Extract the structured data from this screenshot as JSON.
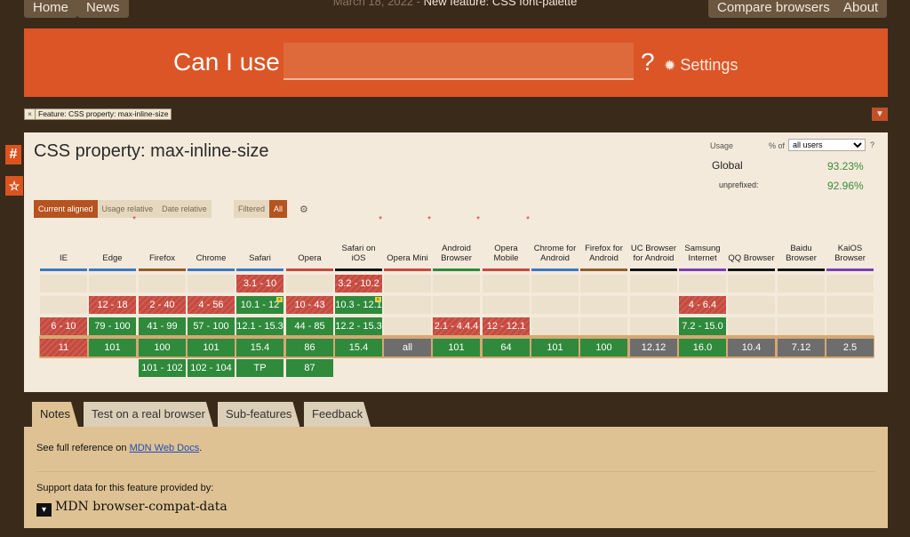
{
  "nav": {
    "home": "Home",
    "news": "News",
    "compare": "Compare browsers",
    "about": "About"
  },
  "news_bar": {
    "date": "March 18, 2022 - ",
    "headline": "New feature: CSS font-palette"
  },
  "header": {
    "can_i_use": "Can I use",
    "search_value": "",
    "question": "?",
    "settings": "Settings"
  },
  "feature_tag": {
    "close": "×",
    "label": "Feature: CSS property: max-inline-size"
  },
  "side_icons": {
    "hash": "#",
    "star": "☆"
  },
  "title": "CSS property: max-inline-size",
  "usage": {
    "label": "Usage",
    "pct_of": "% of",
    "selected": "all users",
    "help": "?",
    "global": "Global",
    "global_value": "93.23%",
    "unprefixed": "unprefixed:",
    "unprefixed_value": "92.96%"
  },
  "view_tabs": [
    "Current aligned",
    "Usage relative",
    "Date relative"
  ],
  "filter_tabs": [
    "Filtered",
    "All"
  ],
  "browsers": [
    {
      "name": "IE",
      "asterisk": false,
      "color": "#3c78c3"
    },
    {
      "name": "Edge",
      "asterisk": true,
      "color": "#3c78c3"
    },
    {
      "name": "Firefox",
      "asterisk": false,
      "color": "#8f5e2e"
    },
    {
      "name": "Chrome",
      "asterisk": false,
      "color": "#3c78c3"
    },
    {
      "name": "Safari",
      "asterisk": false,
      "color": "#3c78c3"
    },
    {
      "name": "Opera",
      "asterisk": false,
      "color": "#c44a40"
    },
    {
      "name": "Safari on iOS",
      "asterisk": true,
      "color": "#111111"
    },
    {
      "name": "Opera Mini",
      "asterisk": true,
      "color": "#c44a40"
    },
    {
      "name": "Android Browser",
      "asterisk": true,
      "color": "#2f8a3c"
    },
    {
      "name": "Opera Mobile",
      "asterisk": true,
      "color": "#c44a40"
    },
    {
      "name": "Chrome for Android",
      "asterisk": false,
      "color": "#3c78c3"
    },
    {
      "name": "Firefox for Android",
      "asterisk": false,
      "color": "#8f5e2e"
    },
    {
      "name": "UC Browser for Android",
      "asterisk": false,
      "color": "#111111"
    },
    {
      "name": "Samsung Internet",
      "asterisk": false,
      "color": "#7a3fb5"
    },
    {
      "name": "QQ Browser",
      "asterisk": false,
      "color": "#111111"
    },
    {
      "name": "Baidu Browser",
      "asterisk": false,
      "color": "#111111"
    },
    {
      "name": "KaiOS Browser",
      "asterisk": false,
      "color": "#7a3fb5"
    }
  ],
  "rows": [
    [
      null,
      null,
      null,
      null,
      {
        "v": "3.1 - 10",
        "s": "red"
      },
      null,
      {
        "v": "3.2 - 10.2",
        "s": "red"
      },
      null,
      null,
      null,
      null,
      null,
      null,
      null,
      null,
      null,
      null
    ],
    [
      null,
      {
        "v": "12 - 18",
        "s": "red"
      },
      {
        "v": "2 - 40",
        "s": "red"
      },
      {
        "v": "4 - 56",
        "s": "red"
      },
      {
        "v": "10.1 - 12",
        "s": "grn",
        "flag": true
      },
      {
        "v": "10 - 43",
        "s": "red"
      },
      {
        "v": "10.3 - 12.1",
        "s": "grn",
        "flag": true
      },
      null,
      null,
      null,
      null,
      null,
      null,
      {
        "v": "4 - 6.4",
        "s": "red"
      },
      null,
      null,
      null
    ],
    [
      {
        "v": "6 - 10",
        "s": "red"
      },
      {
        "v": "79 - 100",
        "s": "grn"
      },
      {
        "v": "41 - 99",
        "s": "grn"
      },
      {
        "v": "57 - 100",
        "s": "grn"
      },
      {
        "v": "12.1 - 15.3",
        "s": "grn"
      },
      {
        "v": "44 - 85",
        "s": "grn"
      },
      {
        "v": "12.2 - 15.3",
        "s": "grn"
      },
      null,
      {
        "v": "2.1 - 4.4.4",
        "s": "red"
      },
      {
        "v": "12 - 12.1",
        "s": "red"
      },
      null,
      null,
      null,
      {
        "v": "7.2 - 15.0",
        "s": "grn"
      },
      null,
      null,
      null
    ],
    [
      {
        "v": "11",
        "s": "red"
      },
      {
        "v": "101",
        "s": "grn"
      },
      {
        "v": "100",
        "s": "grn"
      },
      {
        "v": "101",
        "s": "grn"
      },
      {
        "v": "15.4",
        "s": "grn"
      },
      {
        "v": "86",
        "s": "grn"
      },
      {
        "v": "15.4",
        "s": "grn"
      },
      {
        "v": "all",
        "s": "gry"
      },
      {
        "v": "101",
        "s": "grn"
      },
      {
        "v": "64",
        "s": "grn"
      },
      {
        "v": "101",
        "s": "grn"
      },
      {
        "v": "100",
        "s": "grn"
      },
      {
        "v": "12.12",
        "s": "gry"
      },
      {
        "v": "16.0",
        "s": "grn"
      },
      {
        "v": "10.4",
        "s": "gry"
      },
      {
        "v": "7.12",
        "s": "gry"
      },
      {
        "v": "2.5",
        "s": "gry"
      }
    ],
    [
      null,
      null,
      {
        "v": "101 - 102",
        "s": "grn"
      },
      {
        "v": "102 - 104",
        "s": "grn"
      },
      {
        "v": "TP",
        "s": "grn"
      },
      {
        "v": "87",
        "s": "grn"
      },
      null,
      null,
      null,
      null,
      null,
      null,
      null,
      null,
      null,
      null,
      null
    ]
  ],
  "note_tabs": [
    "Notes",
    "Test on a real browser",
    "Sub-features",
    "Feedback"
  ],
  "notes": {
    "prefix": "See full reference on ",
    "link": "MDN Web Docs",
    "suffix": ".",
    "support": "Support data for this feature provided by:",
    "bcd": "MDN browser-compat-data"
  }
}
